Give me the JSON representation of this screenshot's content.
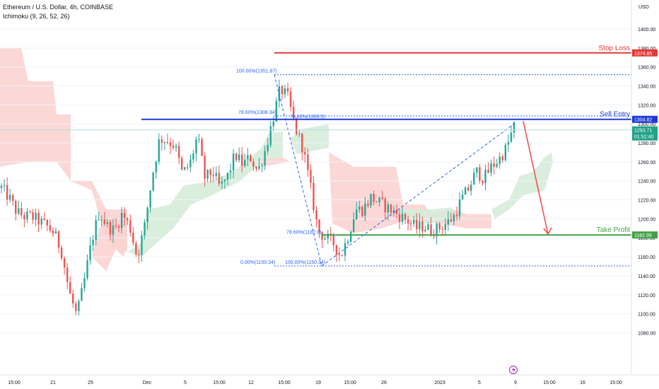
{
  "header": {
    "title": "Ethereum / U.S. Dollar, 4h, COINBASE",
    "indicator": "Ichimoku (9, 26, 52, 26)"
  },
  "currency": "USD",
  "colors": {
    "bull": "#26a69a",
    "bear": "#ef5350",
    "stop_loss": "#e53935",
    "sell_entry": "#1e3ad6",
    "take_profit": "#43a047",
    "fib": "#2962ff",
    "cloud_bull": "#d6ecd9",
    "cloud_bear": "#fbd4d2",
    "price_badge": "#22a389"
  },
  "chart_data": {
    "type": "candlestick",
    "symbol": "Ethereum / U.S. Dollar",
    "interval": "4h",
    "exchange": "COINBASE",
    "ylim": [
      1070,
      1410
    ],
    "y_ticks": [
      1080,
      1100,
      1120,
      1140,
      1160,
      1180,
      1200,
      1220,
      1240,
      1260,
      1280,
      1300,
      1320,
      1340,
      1360,
      1380,
      1400
    ],
    "x_ticks": [
      "15:00",
      "21",
      "25",
      "Dec",
      "5",
      "15:00",
      "12",
      "15:00",
      "19",
      "15:00",
      "26",
      "2023",
      "5",
      "9",
      "15:00",
      "16",
      "15:00"
    ],
    "price_path": [
      [
        1255,
        1210
      ],
      [
        1235,
        1210
      ],
      [
        1220,
        1195
      ],
      [
        1205,
        1200
      ],
      [
        1215,
        1190
      ],
      [
        1195,
        1200
      ],
      [
        1180,
        1205
      ],
      [
        1160,
        1210
      ],
      [
        1150,
        1180
      ],
      [
        1140,
        1105
      ],
      [
        1110,
        1085
      ],
      [
        1120,
        1150
      ],
      [
        1160,
        1195
      ],
      [
        1200,
        1215
      ],
      [
        1210,
        1175
      ],
      [
        1185,
        1190
      ],
      [
        1195,
        1215
      ],
      [
        1210,
        1175
      ],
      [
        1165,
        1155
      ],
      [
        1180,
        1205
      ],
      [
        1220,
        1270
      ],
      [
        1290,
        1280
      ],
      [
        1275,
        1290
      ],
      [
        1290,
        1265
      ],
      [
        1255,
        1240
      ],
      [
        1240,
        1275
      ],
      [
        1280,
        1295
      ],
      [
        1250,
        1235
      ],
      [
        1245,
        1255
      ],
      [
        1240,
        1225
      ],
      [
        1225,
        1265
      ],
      [
        1275,
        1260
      ],
      [
        1265,
        1250
      ],
      [
        1265,
        1265
      ],
      [
        1255,
        1245
      ],
      [
        1260,
        1285
      ],
      [
        1290,
        1320
      ],
      [
        1330,
        1345
      ],
      [
        1345,
        1310
      ],
      [
        1300,
        1290
      ],
      [
        1280,
        1270
      ],
      [
        1255,
        1210
      ],
      [
        1195,
        1180
      ],
      [
        1185,
        1175
      ],
      [
        1180,
        1170
      ],
      [
        1165,
        1155
      ],
      [
        1165,
        1200
      ],
      [
        1205,
        1215
      ],
      [
        1205,
        1215
      ],
      [
        1220,
        1225
      ],
      [
        1215,
        1220
      ],
      [
        1215,
        1210
      ],
      [
        1210,
        1205
      ],
      [
        1210,
        1195
      ],
      [
        1200,
        1195
      ],
      [
        1195,
        1185
      ],
      [
        1195,
        1190
      ],
      [
        1190,
        1185
      ],
      [
        1185,
        1195
      ],
      [
        1195,
        1195
      ],
      [
        1200,
        1205
      ],
      [
        1215,
        1225
      ],
      [
        1220,
        1245
      ],
      [
        1255,
        1245
      ],
      [
        1240,
        1245
      ],
      [
        1245,
        1265
      ],
      [
        1265,
        1260
      ],
      [
        1260,
        1290
      ],
      [
        1300,
        1295
      ]
    ],
    "ichimoku_cloud": {
      "bear_segments": [
        {
          "from": 0,
          "to": 180,
          "note": "bearish cloud"
        },
        {
          "from": 460,
          "to": 695,
          "note": "bearish cloud"
        }
      ],
      "bull_segments": [
        {
          "from": 180,
          "to": 460,
          "note": "bullish cloud"
        },
        {
          "from": 695,
          "to": 785,
          "note": "bullish cloud"
        }
      ]
    },
    "levels": {
      "stop_loss": {
        "label": "Stop Loss",
        "price": 1374.85
      },
      "sell_entry": {
        "label": "Sell Entry",
        "price": 1304.82
      },
      "take_profit": {
        "label": "Take Profit",
        "price": 1182.99
      },
      "current_price": {
        "price": 1293.71,
        "countdown": "01:52:40"
      }
    },
    "fibonacci": [
      {
        "label": "100.00%(1351.87)",
        "price": 1351.87
      },
      {
        "label": "78.60%(1308.34)",
        "price": 1308.34
      },
      {
        "label": "0.00%(1150.34)",
        "price": 1150.34
      },
      {
        "label": "100.00%(1150.34)",
        "price": 1150.34
      },
      {
        "label": "78.60%(1182.9)",
        "price": 1182.9
      },
      {
        "label": "78.60%(1308.5)",
        "price": 1308.5
      }
    ],
    "projection_arrow": {
      "from_price": 1304,
      "to_price": 1183
    }
  },
  "labels": {
    "stop_loss_price": "1374.85",
    "sell_entry_price": "1304.82",
    "take_profit_price": "1182.99",
    "current_price": "1293.71",
    "countdown": "01:52:40"
  }
}
